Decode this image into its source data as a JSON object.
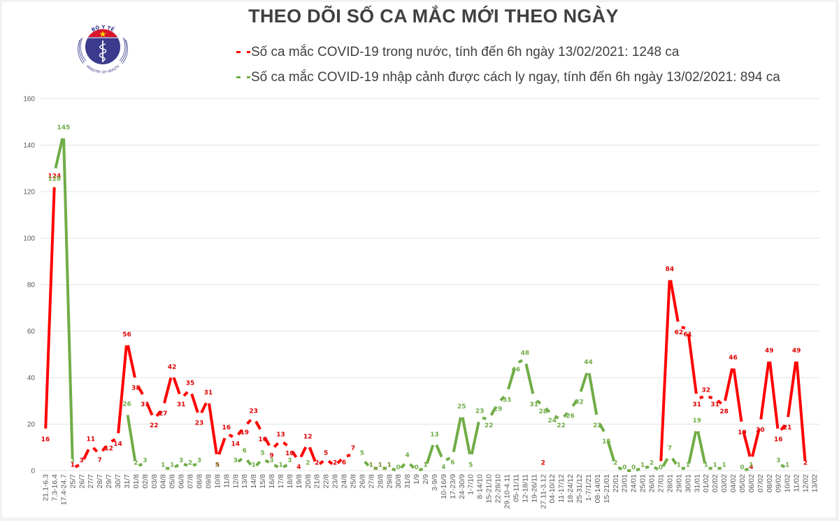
{
  "header": {
    "title": "THEO DÕI SỐ CA MẮC MỚI THEO NGÀY",
    "logo": {
      "top_text": "BỘ Y TẾ",
      "bottom_text": "MINISTRY OF HEALTH",
      "icon": "caduceus-icon"
    }
  },
  "legend": [
    {
      "marker": "-",
      "text": "Số ca mắc COVID-19 trong nước, tính đến 6h ngày 13/02/2021: 1248 ca",
      "color": "#ff0000"
    },
    {
      "marker": "-",
      "text": "Số ca mắc COVID-19 nhập cảnh được cách ly ngay, tính đến 6h ngày 13/02/2021: 894 ca",
      "color": "#70ad47"
    }
  ],
  "chart_data": {
    "type": "line",
    "title": "THEO DÕI SỐ CA MẮC MỚI THEO NGÀY",
    "xlabel": "",
    "ylabel": "",
    "ylim": [
      0,
      160
    ],
    "yticks": [
      0,
      20,
      40,
      60,
      80,
      100,
      120,
      140,
      160
    ],
    "grid": true,
    "legend_position": "top",
    "categories": [
      "21.1-6.3",
      "7.3-16.4",
      "17.4-24.7",
      "25/7",
      "26/7",
      "27/7",
      "28/7",
      "29/7",
      "30/7",
      "31/7",
      "01/8",
      "02/8",
      "03/8",
      "04/8",
      "05/8",
      "06/8",
      "07/8",
      "08/8",
      "09/8",
      "10/8",
      "11/8",
      "12/8",
      "13/8",
      "14/8",
      "15/8",
      "16/8",
      "17/8",
      "18/8",
      "19/8",
      "20/8",
      "21/8",
      "22/8",
      "23/8",
      "24/8",
      "25/8",
      "26/8",
      "27/8",
      "28/8",
      "29/8",
      "30/8",
      "31/8",
      "1/9",
      "2/9",
      "3-9/9",
      "10-16/9",
      "17-23/9",
      "24-30/9",
      "1-7/10",
      "8-14/10",
      "15-21/10",
      "22-28/10",
      "29.10-4.11",
      "05-11/11",
      "12-18/11",
      "19-26/11",
      "27.11-3.12",
      "04-10/12",
      "11-17/12",
      "18-24/12",
      "25-31/12",
      "1-7/1/21",
      "08-14/01",
      "15-21/01",
      "22/01",
      "23/01",
      "24/01",
      "25/01",
      "26/01",
      "27/01",
      "28/01",
      "29/01",
      "30/01",
      "31/01",
      "01/02",
      "02/02",
      "03/02",
      "04/02",
      "05/02",
      "06/02",
      "07/02",
      "08/02",
      "09/02",
      "10/02",
      "11/02",
      "12/02",
      "13/02"
    ],
    "series": [
      {
        "name": "Số ca mắc COVID-19 trong nước",
        "color": "#ff0000",
        "values": [
          16,
          124,
          null,
          1,
          3,
          11,
          7,
          12,
          14,
          56,
          38,
          31,
          22,
          27,
          42,
          31,
          35,
          23,
          31,
          5,
          16,
          14,
          19,
          23,
          16,
          9,
          13,
          10,
          4,
          12,
          2,
          5,
          2,
          6,
          7,
          null,
          1,
          1,
          1,
          null,
          null,
          null,
          1,
          null,
          null,
          null,
          null,
          null,
          null,
          null,
          null,
          null,
          null,
          null,
          null,
          2,
          null,
          null,
          null,
          null,
          null,
          null,
          null,
          null,
          null,
          null,
          null,
          null,
          2,
          84,
          62,
          61,
          31,
          32,
          31,
          28,
          46,
          19,
          4,
          20,
          49,
          16,
          21,
          49,
          2,
          null
        ],
        "show_label": [
          true,
          true,
          false,
          true,
          true,
          true,
          true,
          true,
          true,
          true,
          true,
          true,
          true,
          true,
          true,
          true,
          true,
          true,
          true,
          true,
          true,
          true,
          true,
          true,
          true,
          true,
          true,
          true,
          true,
          true,
          true,
          true,
          true,
          true,
          true,
          false,
          true,
          true,
          true,
          false,
          false,
          false,
          true,
          false,
          false,
          false,
          false,
          false,
          false,
          false,
          false,
          false,
          false,
          false,
          false,
          true,
          false,
          false,
          false,
          false,
          false,
          false,
          false,
          false,
          false,
          false,
          false,
          false,
          false,
          true,
          true,
          true,
          true,
          true,
          true,
          true,
          true,
          true,
          true,
          true,
          true,
          true,
          true,
          true,
          true,
          false
        ]
      },
      {
        "name": "Số ca mắc COVID-19 nhập cảnh được cách ly ngay",
        "color": "#70ad47",
        "values": [
          null,
          128,
          145,
          3,
          null,
          null,
          null,
          null,
          null,
          26,
          2,
          3,
          null,
          1,
          1,
          3,
          2,
          3,
          null,
          1,
          null,
          3,
          6,
          1,
          5,
          3,
          1,
          3,
          null,
          2,
          null,
          null,
          null,
          null,
          null,
          5,
          1,
          1,
          1,
          0,
          4,
          0,
          1,
          13,
          4,
          6,
          25,
          5,
          23,
          22,
          29,
          33,
          46,
          48,
          31,
          28,
          24,
          22,
          26,
          32,
          44,
          22,
          15,
          2,
          0,
          0,
          1,
          2,
          0,
          7,
          1,
          1,
          19,
          1,
          1,
          1,
          null,
          0,
          1,
          null,
          null,
          3,
          1,
          null,
          null,
          null
        ]
      }
    ]
  }
}
